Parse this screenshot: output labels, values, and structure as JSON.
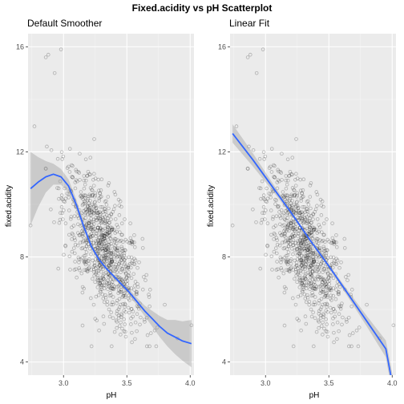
{
  "figure": {
    "title": "Fixed.acidity vs pH Scatterplot"
  },
  "panels": [
    {
      "subtitle": "Default Smoother",
      "xlabel": "pH",
      "ylabel": "fixed.acidity"
    },
    {
      "subtitle": "Linear Fit",
      "xlabel": "pH",
      "ylabel": "fixed.acidity"
    }
  ],
  "chart_data": [
    {
      "type": "scatter",
      "title": "Default Smoother",
      "xlabel": "pH",
      "ylabel": "fixed.acidity",
      "xlim": [
        2.72,
        4.03
      ],
      "ylim": [
        3.5,
        16.5
      ],
      "x_ticks": [
        3.0,
        3.5,
        4.0
      ],
      "x_tick_labels": [
        "3.0",
        "3.5",
        "4.0"
      ],
      "y_ticks": [
        4,
        8,
        12,
        16
      ],
      "y_tick_labels": [
        "4",
        "8",
        "12",
        "16"
      ],
      "grid": true,
      "point_color": "#000000",
      "point_alpha": 0.25,
      "smoother": {
        "method": "loess",
        "color": "#3366FF",
        "x": [
          2.74,
          2.8,
          2.86,
          2.92,
          2.98,
          3.04,
          3.1,
          3.16,
          3.22,
          3.28,
          3.34,
          3.4,
          3.46,
          3.52,
          3.58,
          3.64,
          3.7,
          3.76,
          3.82,
          3.88,
          3.94,
          4.01
        ],
        "y": [
          10.6,
          10.85,
          11.05,
          11.15,
          11.05,
          10.7,
          10.0,
          9.15,
          8.4,
          7.9,
          7.55,
          7.25,
          6.95,
          6.65,
          6.3,
          5.95,
          5.65,
          5.35,
          5.1,
          4.95,
          4.8,
          4.7
        ],
        "lower": [
          9.2,
          9.9,
          10.45,
          10.75,
          10.75,
          10.45,
          9.8,
          9.0,
          8.3,
          7.82,
          7.48,
          7.18,
          6.86,
          6.54,
          6.15,
          5.75,
          5.35,
          4.95,
          4.6,
          4.3,
          4.05,
          3.8
        ],
        "upper": [
          12.0,
          11.8,
          11.65,
          11.55,
          11.35,
          10.95,
          10.2,
          9.3,
          8.5,
          7.98,
          7.62,
          7.32,
          7.04,
          6.76,
          6.45,
          6.15,
          5.95,
          5.75,
          5.6,
          5.6,
          5.55,
          5.6
        ]
      }
    },
    {
      "type": "scatter",
      "title": "Linear Fit",
      "xlabel": "pH",
      "ylabel": "fixed.acidity",
      "xlim": [
        2.72,
        4.03
      ],
      "ylim": [
        3.5,
        16.5
      ],
      "x_ticks": [
        3.0,
        3.5,
        4.0
      ],
      "x_tick_labels": [
        "3.0",
        "3.5",
        "4.0"
      ],
      "y_ticks": [
        4,
        8,
        12,
        16
      ],
      "y_tick_labels": [
        "4",
        "8",
        "12",
        "16"
      ],
      "grid": true,
      "point_color": "#000000",
      "point_alpha": 0.25,
      "smoother": {
        "method": "lm",
        "color": "#3366FF",
        "x": [
          2.74,
          2.9,
          3.05,
          3.2,
          3.35,
          3.5,
          3.65,
          3.8,
          3.95,
          4.01
        ],
        "y": [
          12.7,
          11.7,
          10.7,
          9.7,
          8.65,
          7.65,
          6.6,
          5.55,
          4.5,
          2.95
        ],
        "lower": [
          12.35,
          11.45,
          10.55,
          9.62,
          8.6,
          7.58,
          6.48,
          5.35,
          4.18,
          2.55
        ],
        "upper": [
          13.05,
          11.95,
          10.85,
          9.78,
          8.7,
          7.72,
          6.72,
          5.75,
          4.82,
          3.35
        ]
      }
    }
  ]
}
